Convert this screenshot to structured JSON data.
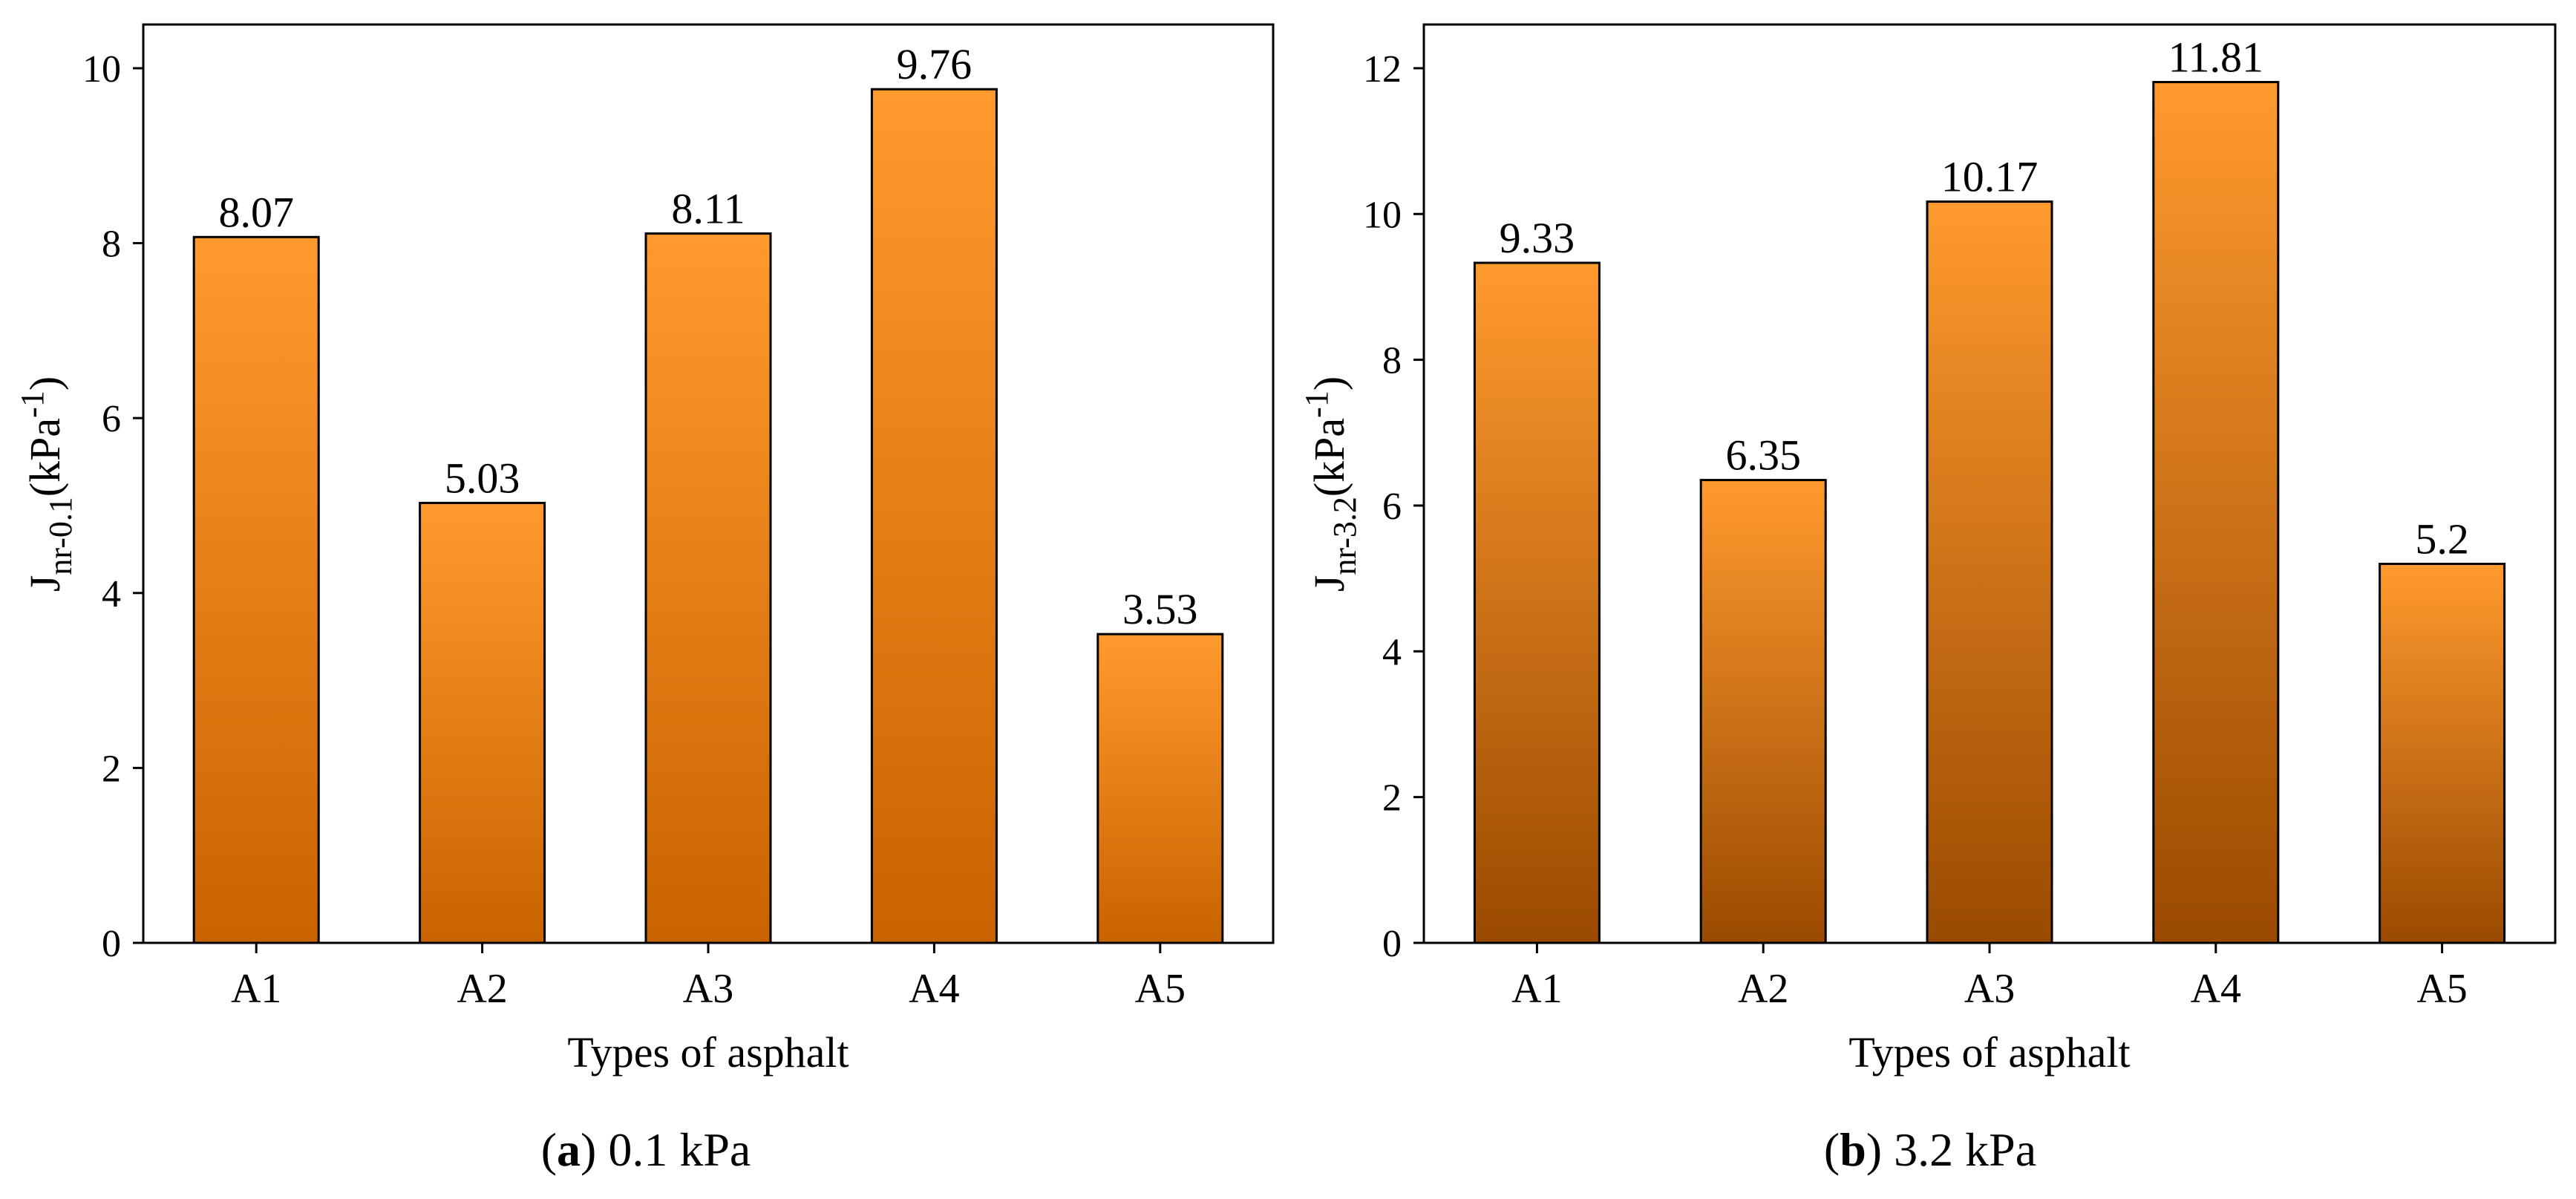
{
  "chart_data": [
    {
      "type": "bar",
      "panel": "a",
      "caption_letter": "a",
      "caption_rest": " 0.1 kPa",
      "categories": [
        "A1",
        "A2",
        "A3",
        "A4",
        "A5"
      ],
      "values": [
        8.07,
        5.03,
        8.11,
        9.76,
        3.53
      ],
      "value_labels": [
        "8.07",
        "5.03",
        "8.11",
        "9.76",
        "3.53"
      ],
      "xlabel": "Types of asphalt",
      "ylabel_main": "J",
      "ylabel_sub": "nr-0.1",
      "ylabel_unit": "(kPa",
      "ylabel_sup": "-1",
      "ylabel_close": ")",
      "ylim": [
        0,
        10.5
      ],
      "yticks": [
        0,
        2,
        4,
        6,
        8,
        10
      ],
      "ytick_labels": [
        "0",
        "2",
        "4",
        "6",
        "8",
        "10"
      ],
      "grid": false,
      "bar_color_top": "#FF9A2E",
      "bar_color_bottom": "#C86400"
    },
    {
      "type": "bar",
      "panel": "b",
      "caption_letter": "b",
      "caption_rest": " 3.2 kPa",
      "categories": [
        "A1",
        "A2",
        "A3",
        "A4",
        "A5"
      ],
      "values": [
        9.33,
        6.35,
        10.17,
        11.81,
        5.2
      ],
      "value_labels": [
        "9.33",
        "6.35",
        "10.17",
        "11.81",
        "5.2"
      ],
      "xlabel": "Types of asphalt",
      "ylabel_main": "J",
      "ylabel_sub": "nr-3.2",
      "ylabel_unit": "(kPa",
      "ylabel_sup": "-1",
      "ylabel_close": ")",
      "ylim": [
        0,
        12.6
      ],
      "yticks": [
        0,
        2,
        4,
        6,
        8,
        10,
        12
      ],
      "ytick_labels": [
        "0",
        "2",
        "4",
        "6",
        "8",
        "10",
        "12"
      ],
      "grid": false,
      "bar_color_top": "#FF9A2E",
      "bar_color_bottom": "#9A4A00"
    }
  ]
}
